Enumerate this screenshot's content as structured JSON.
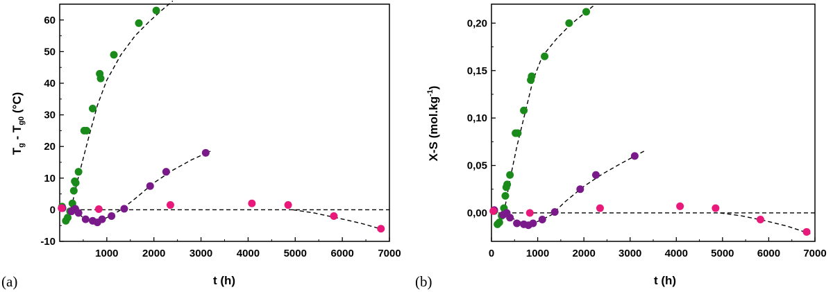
{
  "chart_data": [
    {
      "type": "scatter",
      "panel_label": "(a)",
      "xlabel": "t (h)",
      "ylabel": "T_g - T_g0 (°C)",
      "xlim": [
        0,
        7000
      ],
      "ylim": [
        -10,
        65
      ],
      "x_ticks": [
        "1000",
        "2000",
        "3000",
        "4000",
        "5000",
        "6000",
        "7000"
      ],
      "y_ticks": [
        "-10",
        "0",
        "10",
        "20",
        "30",
        "40",
        "50",
        "60"
      ],
      "x_tick_values": [
        1000,
        2000,
        3000,
        4000,
        5000,
        6000,
        7000
      ],
      "y_tick_values": [
        -10,
        0,
        10,
        20,
        30,
        40,
        50,
        60
      ],
      "series": [
        {
          "color": "#1a8a1a",
          "points": [
            [
              50,
              1
            ],
            [
              130,
              -3.5
            ],
            [
              170,
              -2.5
            ],
            [
              220,
              -0.5
            ],
            [
              270,
              2
            ],
            [
              300,
              6
            ],
            [
              320,
              9
            ],
            [
              340,
              8.5
            ],
            [
              400,
              12
            ],
            [
              520,
              25
            ],
            [
              570,
              25
            ],
            [
              700,
              32
            ],
            [
              850,
              43
            ],
            [
              870,
              41.5
            ],
            [
              1150,
              49
            ],
            [
              1680,
              59
            ],
            [
              2050,
              63
            ]
          ],
          "fit": [
            [
              100,
              -3.2
            ],
            [
              180,
              -2.0
            ],
            [
              260,
              1.5
            ],
            [
              400,
              10.5
            ],
            [
              600,
              22
            ],
            [
              800,
              33
            ],
            [
              1000,
              41
            ],
            [
              1300,
              49
            ],
            [
              1600,
              55
            ],
            [
              1900,
              59.5
            ],
            [
              2200,
              63.5
            ],
            [
              2400,
              66
            ]
          ]
        },
        {
          "color": "#7a1a8a",
          "points": [
            [
              60,
              0.5
            ],
            [
              250,
              -0.5
            ],
            [
              330,
              0.3
            ],
            [
              400,
              -1
            ],
            [
              550,
              -3
            ],
            [
              700,
              -3.5
            ],
            [
              800,
              -4
            ],
            [
              900,
              -3
            ],
            [
              1100,
              -2
            ],
            [
              1370,
              0.3
            ],
            [
              1920,
              7.5
            ],
            [
              2260,
              12
            ],
            [
              3100,
              18
            ]
          ],
          "fit": [
            [
              300,
              0
            ],
            [
              500,
              -2.5
            ],
            [
              700,
              -3.6
            ],
            [
              900,
              -3.2
            ],
            [
              1100,
              -1.8
            ],
            [
              1300,
              0
            ],
            [
              1600,
              3.5
            ],
            [
              2000,
              8.5
            ],
            [
              2400,
              12.5
            ],
            [
              2800,
              15.8
            ],
            [
              3200,
              18.5
            ]
          ]
        },
        {
          "color": "#e8197a",
          "points": [
            [
              40,
              0.5
            ],
            [
              830,
              0.2
            ],
            [
              2350,
              1.5
            ],
            [
              4080,
              2
            ],
            [
              4850,
              1.5
            ],
            [
              5820,
              -2
            ],
            [
              6820,
              -6
            ]
          ],
          "fit": [
            [
              4950,
              0
            ],
            [
              5400,
              -1
            ],
            [
              5900,
              -2.6
            ],
            [
              6400,
              -4.3
            ],
            [
              6850,
              -6.2
            ]
          ]
        }
      ],
      "reference_line_y": 0
    },
    {
      "type": "scatter",
      "panel_label": "(b)",
      "xlabel": "t (h)",
      "ylabel": "X-S (mol.kg-1)",
      "ylabel_main": "X-S (mol.kg",
      "ylabel_sup": "-1",
      "ylabel_close": ")",
      "xlim": [
        0,
        7000
      ],
      "ylim": [
        -0.03,
        0.22
      ],
      "x_ticks": [
        "0",
        "1000",
        "2000",
        "3000",
        "4000",
        "5000",
        "6000",
        "7000"
      ],
      "y_ticks": [
        "0,00",
        "0,05",
        "0,10",
        "0,15",
        "0,20"
      ],
      "x_tick_values": [
        0,
        1000,
        2000,
        3000,
        4000,
        5000,
        6000,
        7000
      ],
      "y_tick_values": [
        0,
        0.05,
        0.1,
        0.15,
        0.2
      ],
      "series": [
        {
          "color": "#1a8a1a",
          "points": [
            [
              60,
              0.002
            ],
            [
              130,
              -0.012
            ],
            [
              170,
              -0.01
            ],
            [
              220,
              -0.003
            ],
            [
              270,
              0.005
            ],
            [
              300,
              0.018
            ],
            [
              320,
              0.027
            ],
            [
              340,
              0.03
            ],
            [
              400,
              0.04
            ],
            [
              520,
              0.084
            ],
            [
              570,
              0.084
            ],
            [
              700,
              0.108
            ],
            [
              850,
              0.14
            ],
            [
              870,
              0.144
            ],
            [
              1150,
              0.165
            ],
            [
              1680,
              0.2
            ],
            [
              2050,
              0.212
            ]
          ],
          "fit": [
            [
              120,
              -0.012
            ],
            [
              200,
              -0.008
            ],
            [
              300,
              0.008
            ],
            [
              400,
              0.035
            ],
            [
              550,
              0.07
            ],
            [
              700,
              0.1
            ],
            [
              900,
              0.14
            ],
            [
              1100,
              0.165
            ],
            [
              1400,
              0.183
            ],
            [
              1700,
              0.198
            ],
            [
              2000,
              0.21
            ],
            [
              2200,
              0.218
            ]
          ]
        },
        {
          "color": "#7a1a8a",
          "points": [
            [
              60,
              0.003
            ],
            [
              250,
              -0.002
            ],
            [
              330,
              0.0
            ],
            [
              400,
              -0.005
            ],
            [
              550,
              -0.011
            ],
            [
              700,
              -0.012
            ],
            [
              800,
              -0.013
            ],
            [
              900,
              -0.011
            ],
            [
              1100,
              -0.007
            ],
            [
              1370,
              0.001
            ],
            [
              1920,
              0.025
            ],
            [
              2260,
              0.04
            ],
            [
              3100,
              0.06
            ]
          ],
          "fit": [
            [
              300,
              0
            ],
            [
              500,
              -0.007
            ],
            [
              700,
              -0.011
            ],
            [
              900,
              -0.011
            ],
            [
              1100,
              -0.007
            ],
            [
              1300,
              -0.002
            ],
            [
              1600,
              0.012
            ],
            [
              2000,
              0.028
            ],
            [
              2400,
              0.041
            ],
            [
              2800,
              0.052
            ],
            [
              3300,
              0.065
            ]
          ]
        },
        {
          "color": "#e8197a",
          "points": [
            [
              40,
              0.002
            ],
            [
              830,
              0.0
            ],
            [
              2350,
              0.005
            ],
            [
              4080,
              0.007
            ],
            [
              4850,
              0.005
            ],
            [
              5820,
              -0.007
            ],
            [
              6820,
              -0.02
            ]
          ],
          "fit": [
            [
              4950,
              0
            ],
            [
              5400,
              -0.003
            ],
            [
              5900,
              -0.008
            ],
            [
              6400,
              -0.014
            ],
            [
              6900,
              -0.022
            ]
          ]
        }
      ],
      "reference_line_y": 0
    }
  ]
}
